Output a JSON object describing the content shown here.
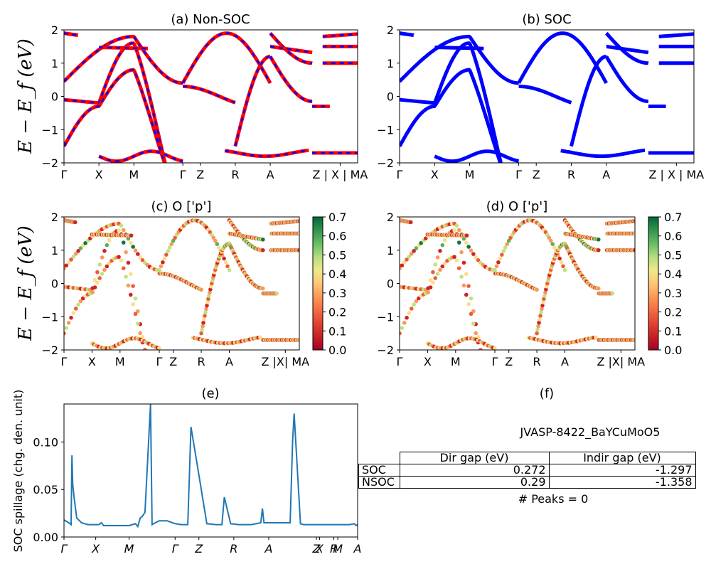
{
  "figure": {
    "ylabel_top": "E − E_f (eV)",
    "ylabel_mid": "E − E_f (eV)"
  },
  "panels": {
    "a": {
      "title": "(a) Non-SOC"
    },
    "b": {
      "title": "(b) SOC"
    },
    "c": {
      "title": "(c)  O ['p']"
    },
    "d": {
      "title": "(d) O ['p']"
    },
    "e": {
      "title": "(e)",
      "ylabel": "SOC spillage (chg. den. unit)"
    },
    "f": {
      "title": "(f)",
      "material": "JVASP-8422_BaYCuMoO5",
      "table": {
        "headers": [
          "Dir gap (eV)",
          "Indir gap (eV)"
        ],
        "rows": [
          {
            "label": "SOC",
            "dir": "0.272",
            "indir": "-1.297"
          },
          {
            "label": "NSOC",
            "dir": "0.29",
            "indir": "-1.358"
          }
        ]
      },
      "peaks": "# Peaks = 0"
    }
  },
  "chart_data": [
    {
      "type": "line",
      "panel": "a",
      "title": "(a) Non-SOC",
      "ylabel": "E − E_f (eV)",
      "ylim": [
        -2,
        2
      ],
      "yticks": [
        "−2",
        "−1",
        "0",
        "1",
        "2"
      ],
      "xticks": [
        "Γ",
        "X",
        "M",
        "Γ",
        "Z",
        "R",
        "A",
        "Z | X | MA"
      ],
      "xtick_pos": [
        0,
        0.5,
        1.0,
        1.7,
        1.95,
        2.45,
        2.95,
        3.55,
        3.65,
        4.0
      ],
      "xlim": [
        0,
        4.2
      ],
      "colors": {
        "up": "#ff0000",
        "dn": "#0000ff"
      }
    },
    {
      "type": "line",
      "panel": "b",
      "title": "(b) SOC",
      "ylim": [
        -2,
        2
      ],
      "yticks": [
        "−2",
        "−1",
        "0",
        "1",
        "2"
      ],
      "xticks": [
        "Γ",
        "X",
        "M",
        "Γ",
        "Z",
        "R",
        "A",
        "Z | X | MA"
      ],
      "colors": {
        "band": "#0000ff"
      }
    },
    {
      "type": "scatter",
      "panel": "c",
      "title": "(c)  O ['p']",
      "ylim": [
        -2,
        2
      ],
      "yticks": [
        "−2",
        "−1",
        "0",
        "1",
        "2"
      ],
      "xticks": [
        "Γ",
        "X",
        "M",
        "Γ",
        "Z",
        "R",
        "A",
        "Z |X| MA"
      ],
      "colorbar": {
        "cmap": "RdYlGn",
        "min": 0.0,
        "max": 0.7,
        "ticks": [
          "0.0",
          "0.1",
          "0.2",
          "0.3",
          "0.4",
          "0.5",
          "0.6",
          "0.7"
        ]
      }
    },
    {
      "type": "scatter",
      "panel": "d",
      "title": "(d) O ['p']",
      "ylim": [
        -2,
        2
      ],
      "yticks": [
        "−2",
        "−1",
        "0",
        "1",
        "2"
      ],
      "xticks": [
        "Γ",
        "X",
        "M",
        "Γ",
        "Z",
        "R",
        "A",
        "Z |X| MA"
      ],
      "colorbar": {
        "cmap": "RdYlGn",
        "min": 0.0,
        "max": 0.7,
        "ticks": [
          "0.0",
          "0.1",
          "0.2",
          "0.3",
          "0.4",
          "0.5",
          "0.6",
          "0.7"
        ]
      }
    },
    {
      "type": "line",
      "panel": "e",
      "title": "(e)",
      "ylabel": "SOC spillage (chg. den. unit)",
      "ylim": [
        0,
        0.14
      ],
      "yticks": [
        "0.00",
        "0.05",
        "0.10"
      ],
      "xticks": [
        "Γ",
        "X",
        "M",
        "Γ",
        "Z",
        "R",
        "A",
        "Z",
        "X",
        "R",
        "M",
        "A"
      ],
      "color": "#1f77b4",
      "x": [
        0,
        0.06,
        0.09,
        0.1,
        0.11,
        0.13,
        0.16,
        0.22,
        0.3,
        0.38,
        0.44,
        0.47,
        0.5,
        0.58,
        0.7,
        0.82,
        0.9,
        0.93,
        0.96,
        0.99,
        1.02,
        1.09,
        1.11,
        1.15,
        1.2,
        1.3,
        1.4,
        1.48,
        1.52,
        1.54,
        1.56,
        1.6,
        1.7,
        1.8,
        1.92,
        1.95,
        1.97,
        1.99,
        2.02,
        2.1,
        2.2,
        2.36,
        2.48,
        2.5,
        2.52,
        2.6,
        2.75,
        2.85,
        2.88,
        2.9,
        2.98,
        3.02,
        3.1,
        3.13,
        3.16,
        3.2,
        3.3,
        3.4,
        3.52,
        3.6,
        3.66,
        3.68,
        3.7
      ],
      "values": [
        0.018,
        0.015,
        0.013,
        0.086,
        0.055,
        0.04,
        0.02,
        0.015,
        0.013,
        0.013,
        0.013,
        0.015,
        0.012,
        0.012,
        0.012,
        0.012,
        0.014,
        0.011,
        0.02,
        0.022,
        0.026,
        0.14,
        0.013,
        0.015,
        0.017,
        0.017,
        0.014,
        0.013,
        0.013,
        0.013,
        0.013,
        0.116,
        0.065,
        0.014,
        0.013,
        0.013,
        0.013,
        0.013,
        0.042,
        0.014,
        0.013,
        0.013,
        0.015,
        0.03,
        0.015,
        0.015,
        0.015,
        0.015,
        0.1,
        0.13,
        0.014,
        0.013,
        0.013,
        0.013,
        0.013,
        0.013,
        0.013,
        0.013,
        0.013,
        0.013,
        0.014,
        0.012,
        0.013
      ]
    }
  ]
}
